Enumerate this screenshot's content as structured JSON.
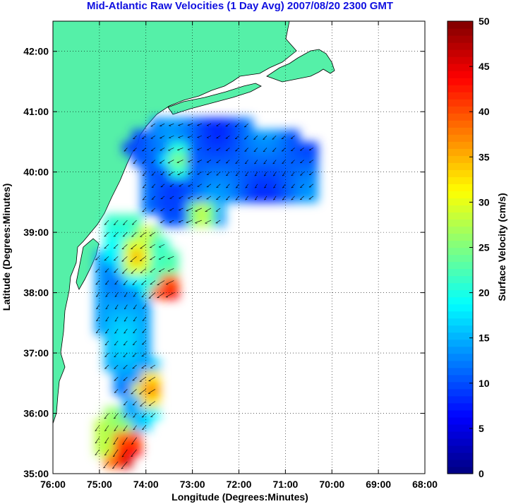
{
  "title": "Mid-Atlantic Raw Velocities (1 Day Avg) 2007/08/20 2300 GMT",
  "map": {
    "xlabel": "Longitude (Degrees:Minutes)",
    "ylabel": "Latitude (Degrees:Minutes)",
    "x_ticks": [
      "76:00",
      "75:00",
      "74:00",
      "73:00",
      "72:00",
      "71:00",
      "70:00",
      "69:00",
      "68:00"
    ],
    "y_ticks": [
      "35:00",
      "36:00",
      "37:00",
      "38:00",
      "39:00",
      "40:00",
      "41:00",
      "42:00"
    ],
    "lon_range": [
      -76,
      -68
    ],
    "lat_range": [
      35,
      42.5
    ],
    "grid": "dotted",
    "land_color": "#55f0a8",
    "coast_line_color": "#a0a0a0"
  },
  "colorbar": {
    "label": "Surface Velocity (cm/s)",
    "range": [
      0,
      50
    ],
    "ticks": [
      "0",
      "5",
      "10",
      "15",
      "20",
      "25",
      "30",
      "35",
      "40",
      "45",
      "50"
    ],
    "colormap": "jet"
  }
}
